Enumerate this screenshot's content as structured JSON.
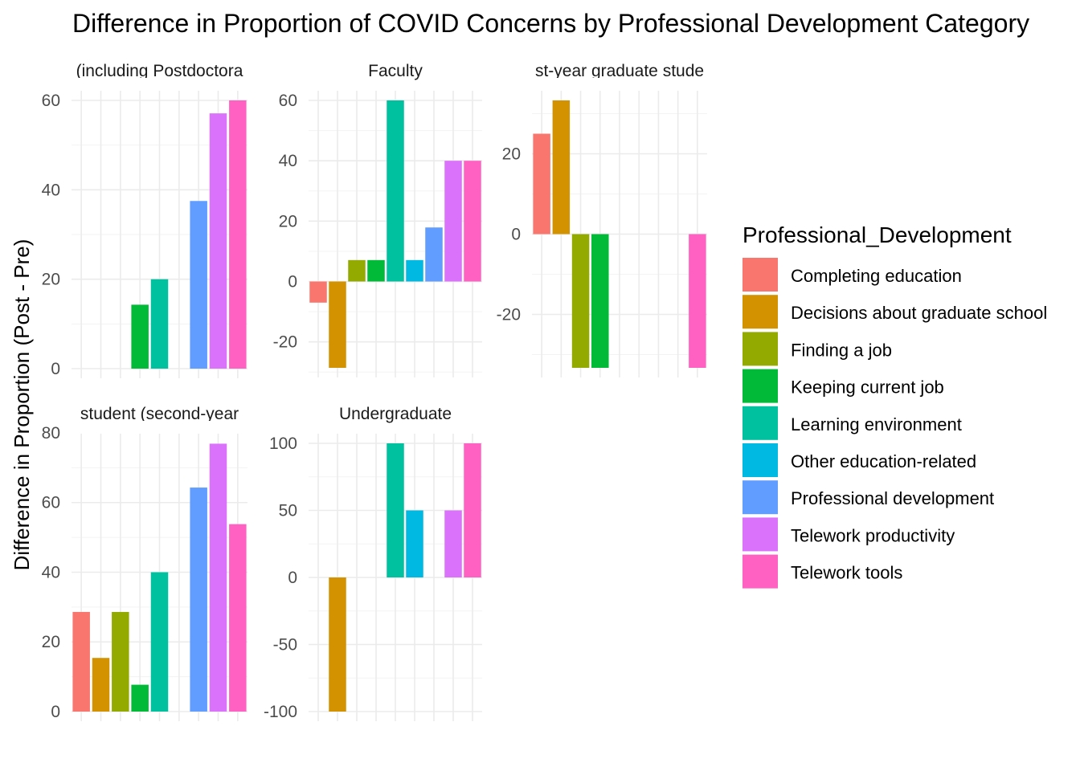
{
  "chart_data": {
    "type": "bar",
    "title": "Difference in Proportion of COVID Concerns by Professional Development Category",
    "ylabel": "Difference in Proportion (Post - Pre)",
    "xlabel": "",
    "legend": {
      "title": "Professional_Development",
      "placement": "right"
    },
    "grid": true,
    "categories": [
      "Completing education",
      "Decisions about graduate school",
      "Finding a job",
      "Keeping current job",
      "Learning environment",
      "Other education-related",
      "Professional development",
      "Telework productivity",
      "Telework tools"
    ],
    "colors": [
      "#F8766D",
      "#D39200",
      "#93AA00",
      "#00BA38",
      "#00C19F",
      "#00B9E3",
      "#619CFF",
      "#DB72FB",
      "#FF61C3"
    ],
    "panels": [
      {
        "strip": "(including Postdoctora",
        "ylim": [
          0,
          60
        ],
        "yticks": [
          0,
          20,
          40,
          60
        ],
        "values": [
          null,
          null,
          null,
          14.3,
          20,
          null,
          37.5,
          57.1,
          60
        ]
      },
      {
        "strip": "Faculty",
        "ylim": [
          -28.6,
          60
        ],
        "yticks": [
          -20,
          0,
          20,
          40,
          60
        ],
        "values": [
          -7,
          -28.6,
          7.1,
          7.1,
          60,
          7.1,
          17.9,
          40,
          40
        ]
      },
      {
        "strip": "st-year graduate stude",
        "ylim": [
          -33.3,
          33.3
        ],
        "yticks": [
          -20,
          0,
          20
        ],
        "values": [
          25,
          33.3,
          -33.3,
          -33.3,
          null,
          null,
          null,
          null,
          -33.3
        ]
      },
      {
        "strip": "student (second-year",
        "ylim": [
          0,
          77
        ],
        "yticks": [
          0,
          20,
          40,
          60,
          80
        ],
        "values": [
          28.6,
          15.4,
          28.6,
          7.7,
          40,
          null,
          64.3,
          76.9,
          53.8
        ]
      },
      {
        "strip": "Undergraduate",
        "ylim": [
          -100,
          100
        ],
        "yticks": [
          -100,
          -50,
          0,
          50,
          100
        ],
        "values": [
          null,
          -100,
          null,
          null,
          100,
          50,
          null,
          50,
          100
        ]
      }
    ]
  }
}
